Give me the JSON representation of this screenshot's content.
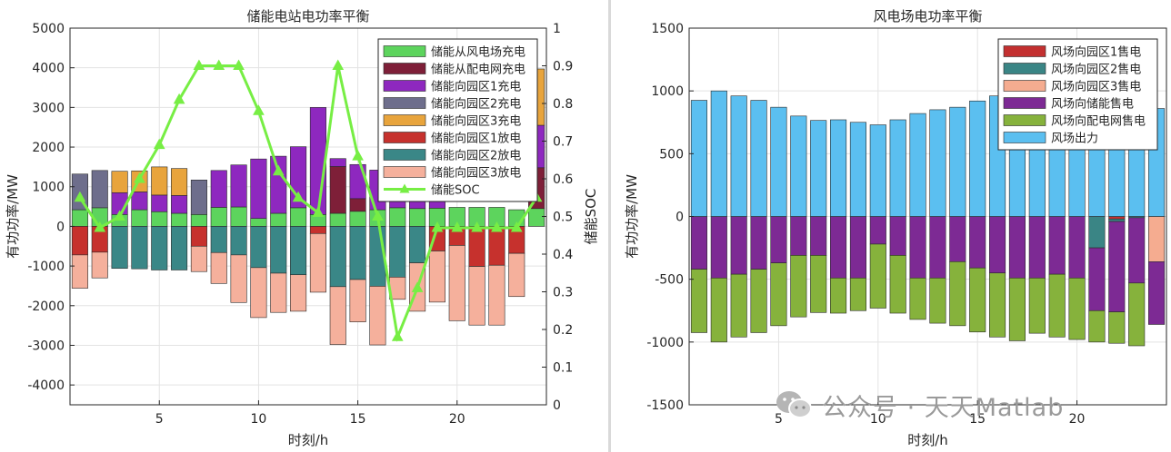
{
  "chart_data": [
    {
      "type": "bar",
      "stacked": true,
      "title": "储能电站电功率平衡",
      "xlabel": "时刻/h",
      "ylabel": "有功功率/MW",
      "ylabel_right": "储能SOC",
      "xlim": [
        0.5,
        24.5
      ],
      "ylim": [
        -4500,
        5000
      ],
      "ylim_right": [
        0,
        1
      ],
      "xticks": [
        5,
        10,
        15,
        20
      ],
      "yticks": [
        -4000,
        -3000,
        -2000,
        -1000,
        0,
        1000,
        2000,
        3000,
        4000,
        5000
      ],
      "yticks_right": [
        0,
        0.1,
        0.2,
        0.3,
        0.4,
        0.5,
        0.6,
        0.7,
        0.8,
        0.9,
        1
      ],
      "legend_position": "top-right",
      "categories": [
        1,
        2,
        3,
        4,
        5,
        6,
        7,
        8,
        9,
        10,
        11,
        12,
        13,
        14,
        15,
        16,
        17,
        18,
        19,
        20,
        21,
        22,
        23,
        24
      ],
      "series": [
        {
          "name": "储能从风电场充电",
          "color": "#5dd45d",
          "values": [
            420,
            470,
            300,
            420,
            370,
            330,
            300,
            480,
            490,
            200,
            330,
            470,
            300,
            330,
            380,
            420,
            470,
            450,
            460,
            480,
            480,
            480,
            420,
            450
          ]
        },
        {
          "name": "储能从配电网充电",
          "color": "#7e1f38",
          "values": [
            0,
            0,
            0,
            0,
            0,
            0,
            0,
            0,
            0,
            0,
            0,
            0,
            0,
            1180,
            320,
            0,
            0,
            0,
            0,
            0,
            0,
            0,
            0,
            1030
          ]
        },
        {
          "name": "储能向园区1充电",
          "color": "#8e28bf",
          "values": [
            0,
            0,
            550,
            450,
            420,
            450,
            0,
            930,
            1060,
            1500,
            1440,
            1540,
            2700,
            200,
            860,
            1000,
            980,
            1000,
            950,
            0,
            0,
            0,
            0,
            1070
          ]
        },
        {
          "name": "储能向园区2充电",
          "color": "#6e6e8c",
          "values": [
            900,
            940,
            0,
            0,
            0,
            0,
            870,
            0,
            0,
            0,
            0,
            0,
            0,
            0,
            0,
            0,
            0,
            0,
            0,
            0,
            0,
            0,
            0,
            0
          ]
        },
        {
          "name": "储能向园区3充电",
          "color": "#e8a43c",
          "values": [
            0,
            0,
            540,
            530,
            710,
            680,
            0,
            0,
            0,
            0,
            0,
            0,
            0,
            0,
            0,
            0,
            0,
            0,
            0,
            0,
            0,
            0,
            0,
            1420
          ]
        },
        {
          "name": "储能向园区1放电",
          "color": "#c6312d",
          "values": [
            -720,
            -650,
            0,
            0,
            0,
            0,
            -500,
            0,
            0,
            0,
            0,
            0,
            -180,
            0,
            0,
            0,
            0,
            0,
            -620,
            -480,
            -1010,
            -980,
            -680,
            0
          ]
        },
        {
          "name": "储能向园区2放电",
          "color": "#3a8787",
          "values": [
            0,
            0,
            -1060,
            -1070,
            -1100,
            -1100,
            0,
            -660,
            -720,
            -1040,
            -1180,
            -1220,
            0,
            -1520,
            -1340,
            -1510,
            -1280,
            -920,
            0,
            0,
            0,
            0,
            0,
            0
          ]
        },
        {
          "name": "储能向园区3放电",
          "color": "#f5b09c",
          "values": [
            -840,
            -650,
            0,
            0,
            0,
            0,
            -640,
            -780,
            -1200,
            -1260,
            -990,
            -920,
            -1480,
            -1460,
            -1070,
            -1480,
            -560,
            -1220,
            -1290,
            -1900,
            -1480,
            -1510,
            -1090,
            0
          ]
        }
      ],
      "line_series": {
        "name": "储能SOC",
        "color": "#77ee44",
        "axis": "right",
        "values": [
          0.55,
          0.47,
          0.5,
          0.6,
          0.69,
          0.81,
          0.9,
          0.9,
          0.9,
          0.78,
          0.62,
          0.55,
          0.51,
          0.9,
          0.66,
          0.5,
          0.18,
          0.31,
          0.47,
          0.47,
          0.47,
          0.47,
          0.47,
          0.55
        ]
      }
    },
    {
      "type": "bar",
      "stacked": true,
      "title": "风电场电功率平衡",
      "xlabel": "时刻/h",
      "ylabel": "有功功率/MW",
      "xlim": [
        0.5,
        24.5
      ],
      "ylim": [
        -1500,
        1500
      ],
      "xticks": [
        5,
        10,
        15,
        20
      ],
      "yticks": [
        -1500,
        -1000,
        -500,
        0,
        500,
        1000,
        1500
      ],
      "legend_position": "top-right",
      "categories": [
        1,
        2,
        3,
        4,
        5,
        6,
        7,
        8,
        9,
        10,
        11,
        12,
        13,
        14,
        15,
        16,
        17,
        18,
        19,
        20,
        21,
        22,
        23,
        24
      ],
      "series": [
        {
          "name": "风场向园区1售电",
          "color": "#c33030",
          "values": [
            0,
            0,
            0,
            0,
            0,
            0,
            0,
            0,
            0,
            0,
            0,
            0,
            0,
            0,
            0,
            0,
            0,
            0,
            0,
            0,
            0,
            -20,
            0,
            0
          ]
        },
        {
          "name": "风场向园区2售电",
          "color": "#3a8585",
          "values": [
            0,
            0,
            0,
            0,
            0,
            0,
            0,
            0,
            0,
            0,
            0,
            0,
            0,
            0,
            0,
            0,
            0,
            0,
            0,
            0,
            -250,
            -20,
            -10,
            0
          ]
        },
        {
          "name": "风场向园区3售电",
          "color": "#f5ac90",
          "values": [
            0,
            0,
            0,
            0,
            0,
            0,
            0,
            0,
            0,
            0,
            0,
            0,
            0,
            0,
            0,
            0,
            0,
            0,
            0,
            0,
            0,
            0,
            0,
            -360
          ]
        },
        {
          "name": "风场向储能售电",
          "color": "#7d2a94",
          "values": [
            -420,
            -490,
            -460,
            -420,
            -370,
            -310,
            -310,
            -490,
            -490,
            -220,
            -310,
            -490,
            -490,
            -360,
            -410,
            -450,
            -490,
            -490,
            -460,
            -490,
            -500,
            -720,
            -520,
            -500
          ]
        },
        {
          "name": "风场向配电网售电",
          "color": "#86b23c",
          "values": [
            -505,
            -510,
            -500,
            -505,
            -500,
            -490,
            -455,
            -280,
            -260,
            -510,
            -460,
            -330,
            -360,
            -510,
            -510,
            -510,
            -500,
            -440,
            -500,
            -490,
            -250,
            -250,
            -500,
            0
          ]
        },
        {
          "name": "风场出力",
          "color": "#5bbff0",
          "values": [
            925,
            1000,
            960,
            925,
            870,
            800,
            765,
            770,
            750,
            730,
            770,
            820,
            850,
            870,
            920,
            960,
            990,
            930,
            960,
            980,
            1000,
            1010,
            1030,
            860
          ]
        }
      ]
    }
  ],
  "watermark": {
    "text": "公众号 · 天天Matlab"
  }
}
